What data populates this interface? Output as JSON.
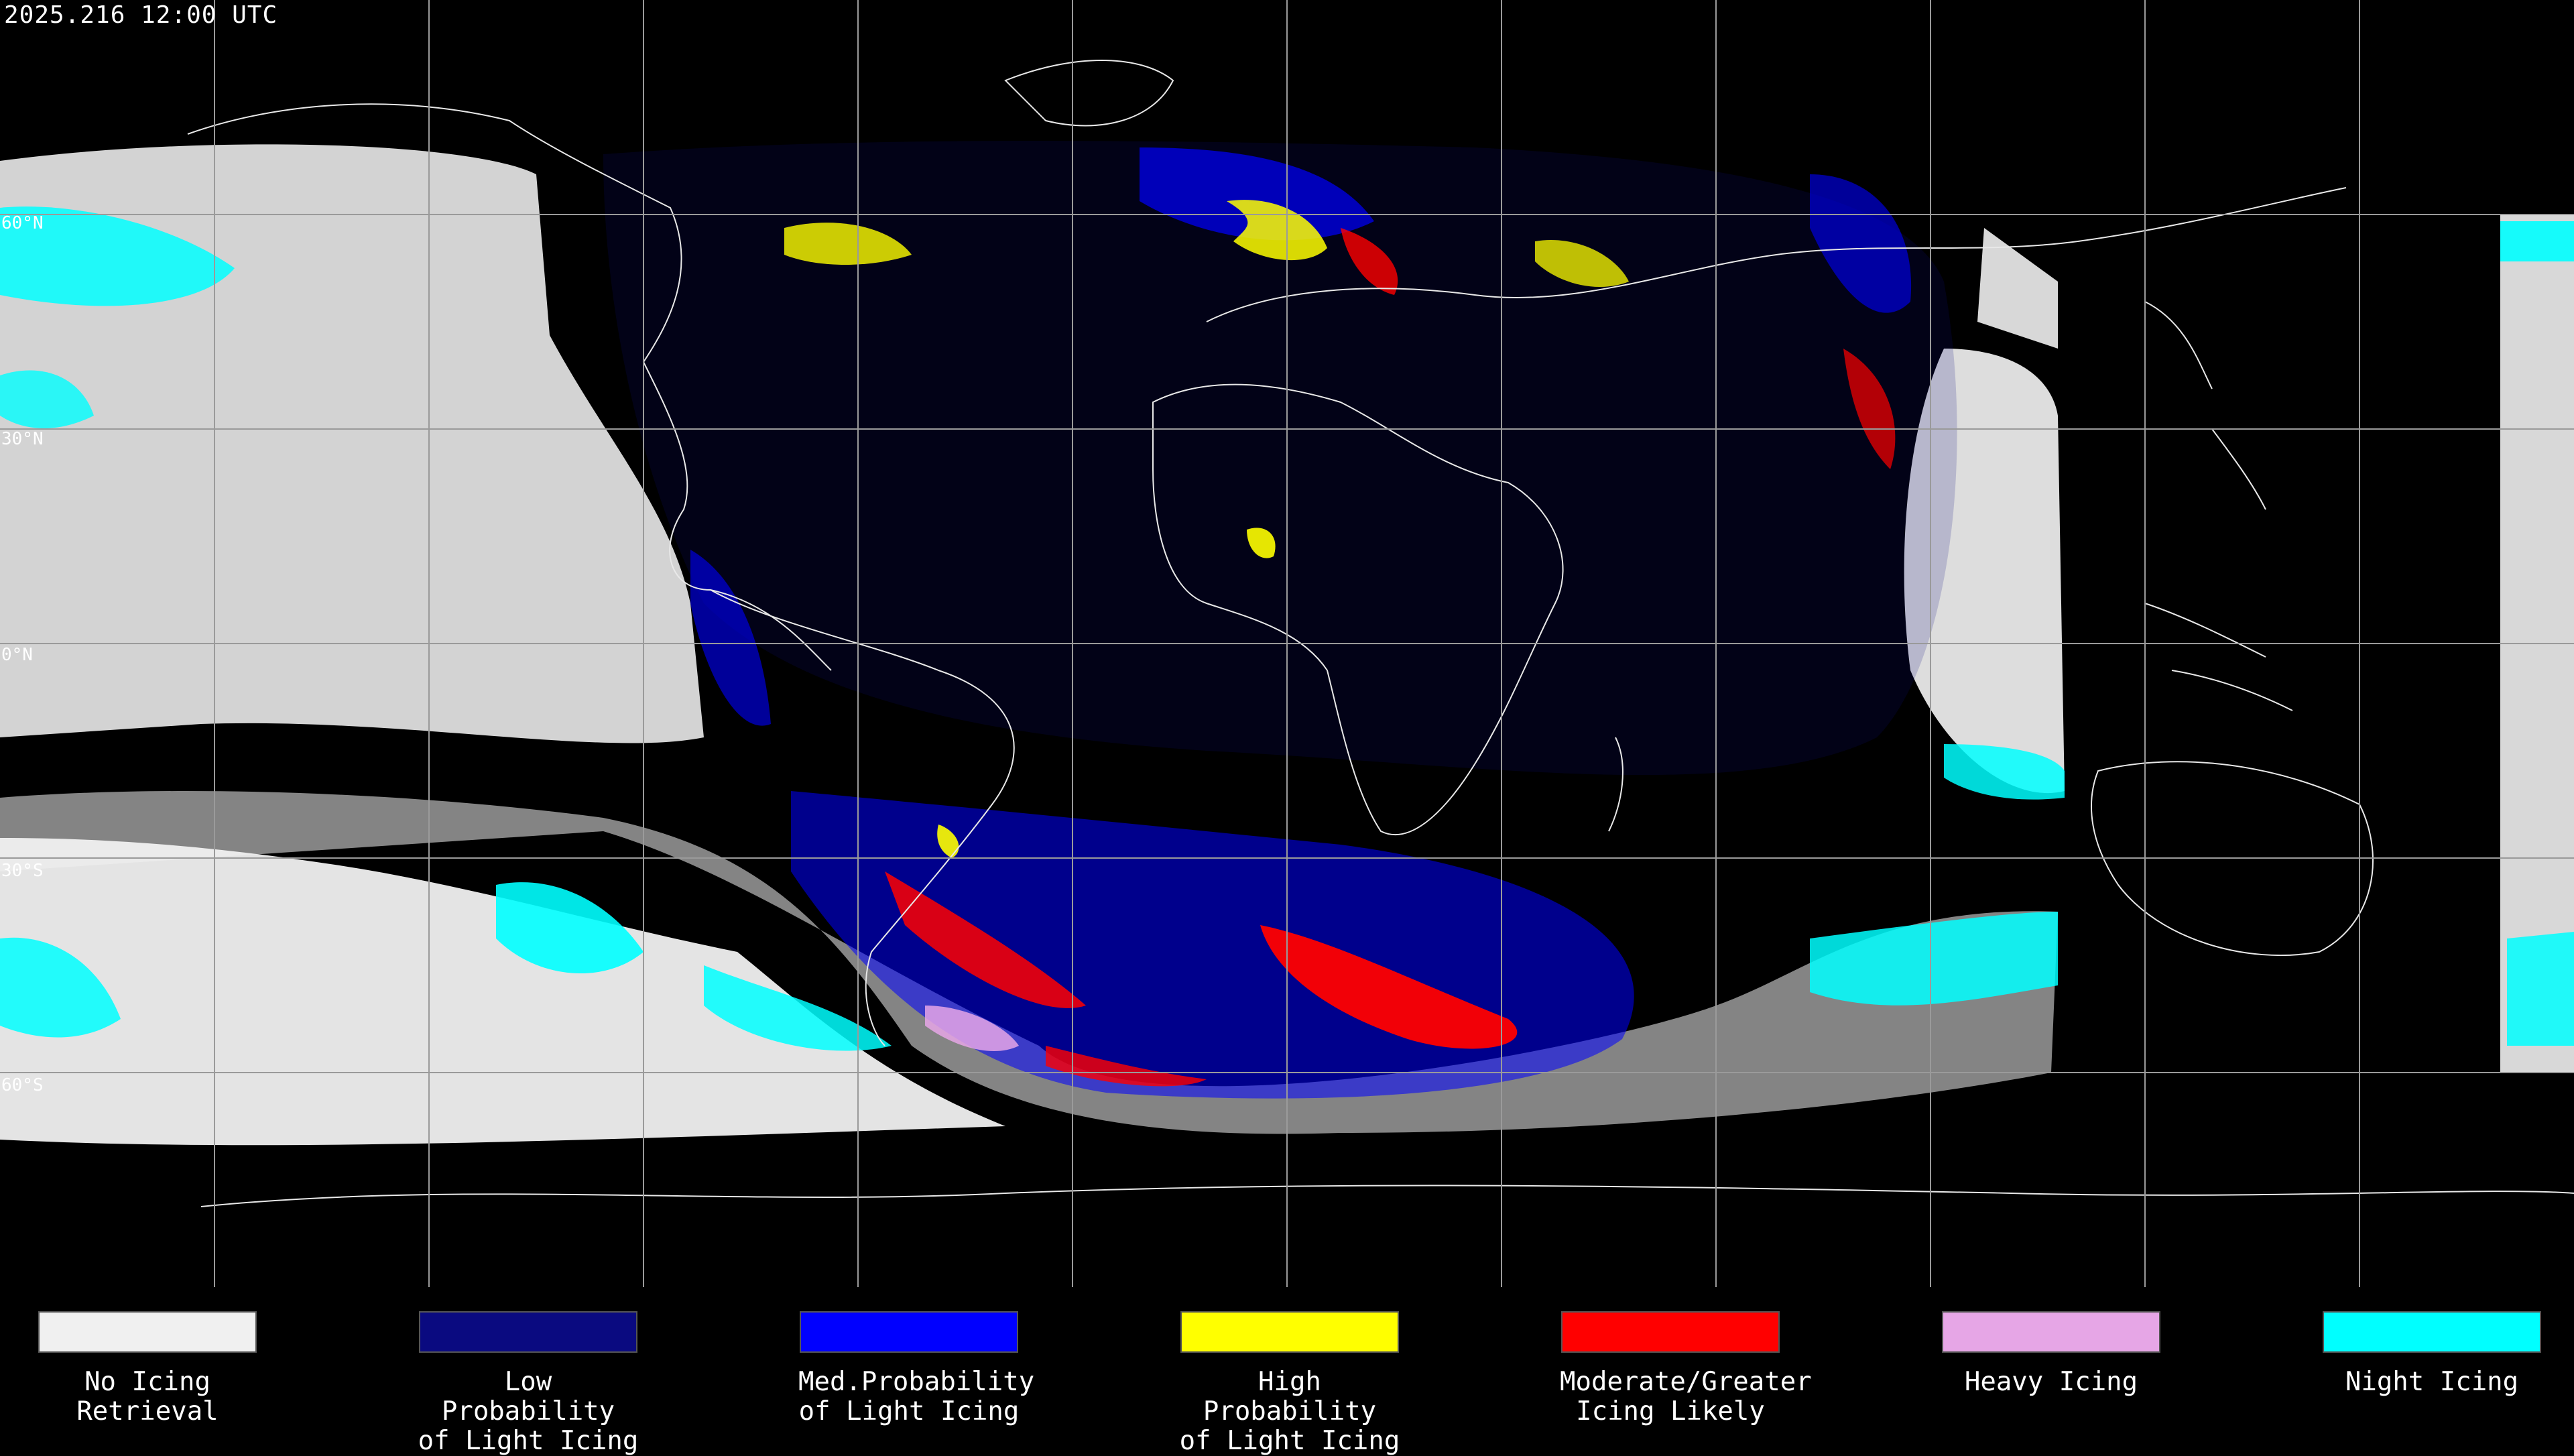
{
  "timestamp": "2025.216 12:00 UTC",
  "map": {
    "projection": "equirectangular",
    "lat_labels": [
      "60°N",
      "30°N",
      "0°N",
      "30°S",
      "60°S"
    ],
    "background_color": "#000000",
    "grid_color": "#9a9a9a",
    "coastline_color": "#e8e8e8"
  },
  "legend": [
    {
      "label": "No Icing\nRetrieval",
      "color": "#f0f0f0"
    },
    {
      "label": "Low Probability\nof Light Icing",
      "color": "#0a0a80"
    },
    {
      "label": "Med.Probability\nof Light Icing",
      "color": "#0000ff"
    },
    {
      "label": "High Probability\nof Light Icing",
      "color": "#ffff00"
    },
    {
      "label": "Moderate/Greater\nIcing Likely",
      "color": "#ff0000"
    },
    {
      "label": "Heavy Icing",
      "color": "#e6a6e6"
    },
    {
      "label": "Night Icing",
      "color": "#00ffff"
    }
  ]
}
